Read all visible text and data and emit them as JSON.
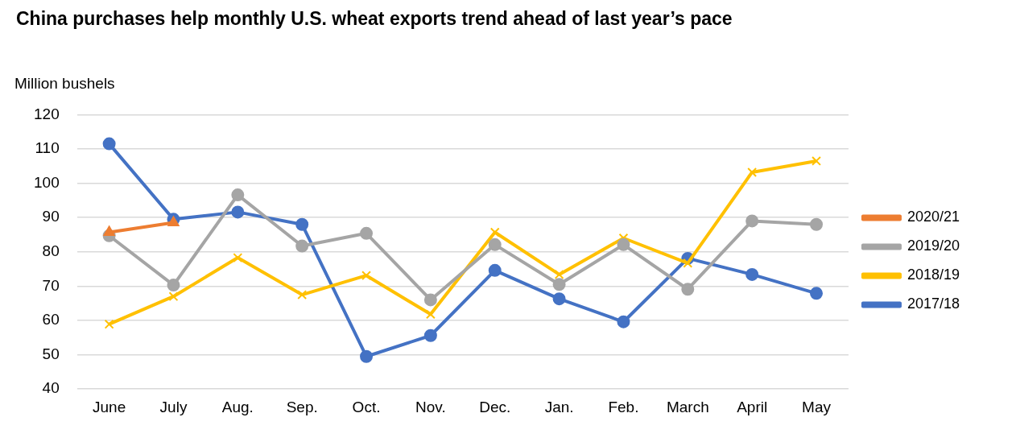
{
  "chart_data": {
    "type": "line",
    "title": "China purchases help monthly U.S. wheat exports trend ahead of last year’s pace",
    "ylabel": "Million bushels",
    "categories": [
      "June",
      "July",
      "Aug.",
      "Sep.",
      "Oct.",
      "Nov.",
      "Dec.",
      "Jan.",
      "Feb.",
      "March",
      "April",
      "May"
    ],
    "series": [
      {
        "name": "2020/21",
        "color": "#ed7d31",
        "marker": "triangle",
        "values": [
          85.7,
          88.5,
          null,
          null,
          null,
          null,
          null,
          null,
          null,
          null,
          null,
          null
        ]
      },
      {
        "name": "2019/20",
        "color": "#a5a5a5",
        "marker": "circle",
        "values": [
          84.7,
          70.3,
          96.6,
          81.7,
          85.4,
          66,
          82.1,
          70.5,
          82.1,
          69.1,
          89,
          88
        ]
      },
      {
        "name": "2018/19",
        "color": "#ffc000",
        "marker": "cross",
        "values": [
          58.9,
          67,
          78.3,
          67.5,
          73.1,
          61.8,
          85.7,
          73.4,
          84,
          76.7,
          103.2,
          106.5
        ]
      },
      {
        "name": "2017/18",
        "color": "#4472c4",
        "marker": "circle",
        "values": [
          111.5,
          89.5,
          91.6,
          88,
          49.5,
          55.6,
          74.6,
          66.3,
          59.6,
          78.1,
          73.4,
          67.9
        ]
      }
    ],
    "ylim": [
      40,
      120
    ],
    "yticks": [
      40,
      50,
      60,
      70,
      80,
      90,
      100,
      110,
      120
    ],
    "grid": "y",
    "legend": "right",
    "line_style": "solid"
  }
}
